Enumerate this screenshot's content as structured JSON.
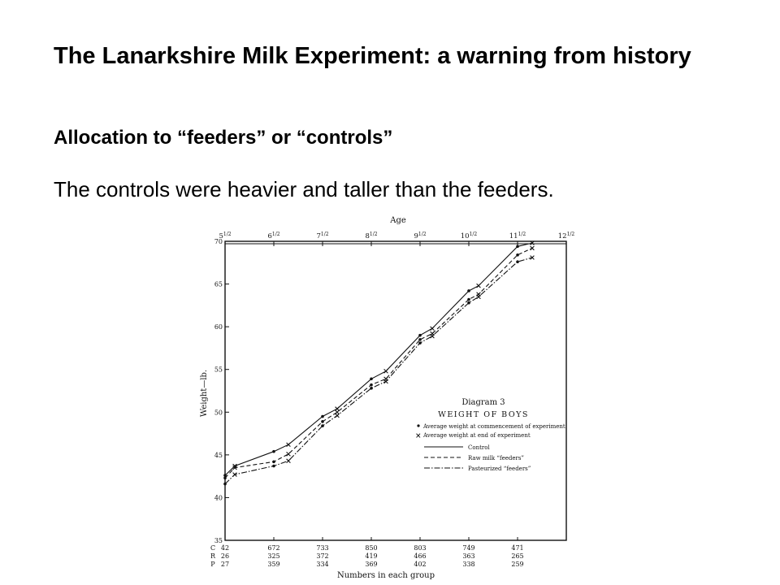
{
  "slide": {
    "title": "The Lanarkshire Milk Experiment: a warning from history",
    "subtitle": "Allocation to “feeders” or “controls”",
    "body": "The controls were heavier and taller than the feeders."
  },
  "chart_data": {
    "type": "line",
    "diagram_label": "Diagram 3",
    "title": "WEIGHT OF BOYS",
    "top_axis_label": "Age",
    "ylabel": "Weight—lb.",
    "xlabel": "Numbers in each group",
    "ylim": [
      35,
      70
    ],
    "xlim": [
      5.5,
      12.5
    ],
    "y_ticks": [
      35,
      40,
      45,
      50,
      55,
      60,
      65,
      70
    ],
    "age_ticks": [
      {
        "whole": "5",
        "half": "1/2",
        "age": 5.5
      },
      {
        "whole": "6",
        "half": "1/2",
        "age": 6.5
      },
      {
        "whole": "7",
        "half": "1/2",
        "age": 7.5
      },
      {
        "whole": "8",
        "half": "1/2",
        "age": 8.5
      },
      {
        "whole": "9",
        "half": "1/2",
        "age": 9.5
      },
      {
        "whole": "10",
        "half": "1/2",
        "age": 10.5
      },
      {
        "whole": "11",
        "half": "1/2",
        "age": 11.5
      },
      {
        "whole": "12",
        "half": "1/2",
        "age": 12.5
      }
    ],
    "legend": {
      "start_marker": "Average weight at commencement of experiment",
      "end_marker": "Average weight at end of experiment",
      "items": [
        {
          "label": "Control",
          "dash": "solid"
        },
        {
          "label": "Raw milk “feeders”",
          "dash": "dashed"
        },
        {
          "label": "Pasteurized “feeders”",
          "dash": "dashdot"
        }
      ]
    },
    "series": [
      {
        "name": "Control",
        "dash": "solid",
        "points": [
          [
            5.5,
            42.6
          ],
          [
            5.7,
            43.7
          ],
          [
            6.5,
            45.4
          ],
          [
            6.8,
            46.2
          ],
          [
            7.5,
            49.5
          ],
          [
            7.8,
            50.4
          ],
          [
            8.5,
            53.9
          ],
          [
            8.8,
            54.8
          ],
          [
            9.5,
            59.0
          ],
          [
            9.75,
            59.8
          ],
          [
            10.5,
            64.2
          ],
          [
            10.7,
            64.8
          ],
          [
            11.5,
            69.4
          ],
          [
            11.8,
            69.8
          ]
        ]
      },
      {
        "name": "Raw milk “feeders”",
        "dash": "dashed",
        "points": [
          [
            5.5,
            42.3
          ],
          [
            5.7,
            43.5
          ],
          [
            6.5,
            44.2
          ],
          [
            6.8,
            45.1
          ],
          [
            7.5,
            48.9
          ],
          [
            7.8,
            50.0
          ],
          [
            8.5,
            53.2
          ],
          [
            8.8,
            53.9
          ],
          [
            9.5,
            58.5
          ],
          [
            9.75,
            59.2
          ],
          [
            10.5,
            63.2
          ],
          [
            10.7,
            63.8
          ],
          [
            11.5,
            68.4
          ],
          [
            11.8,
            69.2
          ]
        ]
      },
      {
        "name": "Pasteurized “feeders”",
        "dash": "dashdot",
        "points": [
          [
            5.5,
            41.6
          ],
          [
            5.7,
            42.7
          ],
          [
            6.5,
            43.7
          ],
          [
            6.8,
            44.3
          ],
          [
            7.5,
            48.4
          ],
          [
            7.8,
            49.6
          ],
          [
            8.5,
            52.8
          ],
          [
            8.8,
            53.6
          ],
          [
            9.5,
            58.1
          ],
          [
            9.75,
            58.9
          ],
          [
            10.5,
            62.8
          ],
          [
            10.7,
            63.5
          ],
          [
            11.5,
            67.6
          ],
          [
            11.8,
            68.1
          ]
        ]
      }
    ],
    "group_counts": {
      "row_labels": [
        "C",
        "R",
        "P"
      ],
      "columns": [
        {
          "age": 5.5,
          "values": [
            "42",
            "26",
            "27"
          ]
        },
        {
          "age": 6.5,
          "values": [
            "672",
            "325",
            "359"
          ]
        },
        {
          "age": 7.5,
          "values": [
            "733",
            "372",
            "334"
          ]
        },
        {
          "age": 8.5,
          "values": [
            "850",
            "419",
            "369"
          ]
        },
        {
          "age": 9.5,
          "values": [
            "803",
            "466",
            "402"
          ]
        },
        {
          "age": 10.5,
          "values": [
            "749",
            "363",
            "338"
          ]
        },
        {
          "age": 11.5,
          "values": [
            "471",
            "265",
            "259"
          ]
        }
      ]
    }
  }
}
